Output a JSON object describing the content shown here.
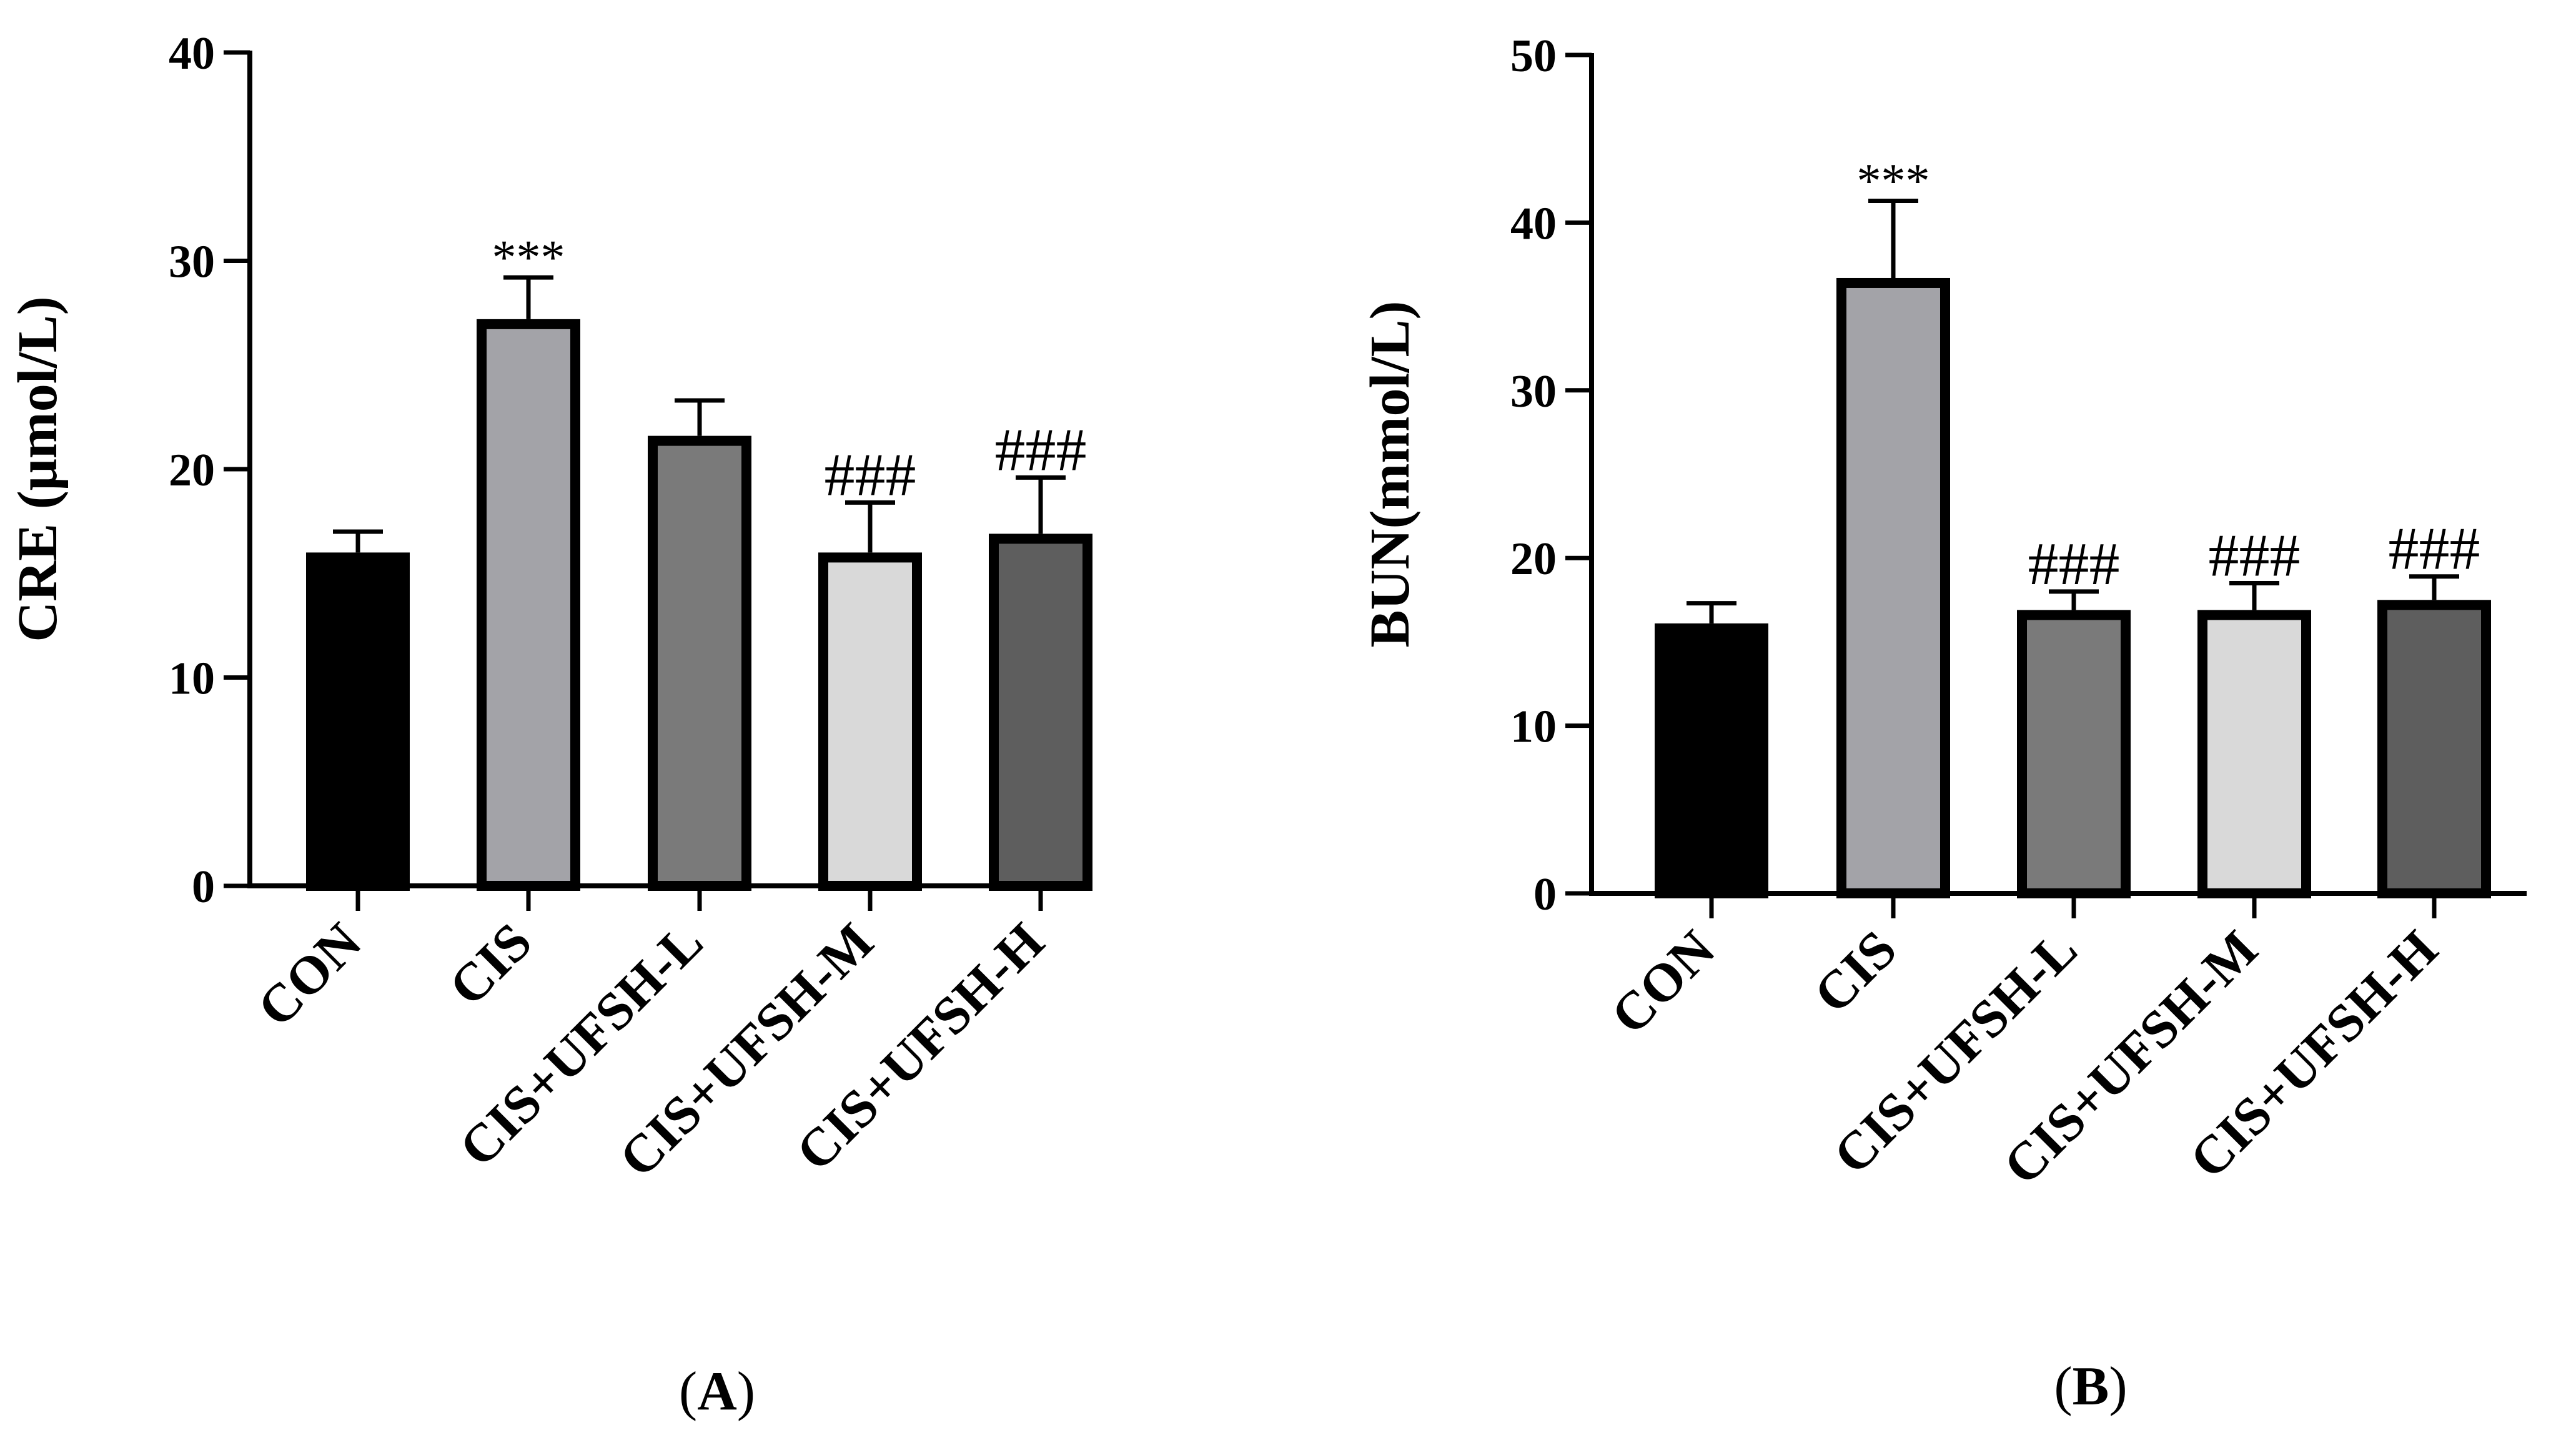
{
  "chart_data": [
    {
      "panel": "A",
      "panel_label": {
        "open": "(",
        "letter": "A",
        "close": ")"
      },
      "type": "bar",
      "ylabel": "CRE (μmol/L)",
      "xlabel": "",
      "ylim": [
        0,
        40
      ],
      "yticks": [
        0,
        10,
        20,
        30,
        40
      ],
      "ytick_labels": [
        "0",
        "10",
        "20",
        "30",
        "40"
      ],
      "categories": [
        "CON",
        "CIS",
        "CIS+UFSH-L",
        "CIS+UFSH-M",
        "CIS+UFSH-H"
      ],
      "values": [
        16.0,
        27.2,
        21.6,
        16.0,
        16.9
      ],
      "errors": [
        1.0,
        2.0,
        1.7,
        2.4,
        2.7
      ],
      "colors": [
        "#000000",
        "#a3a3a8",
        "#7a7a7a",
        "#d9d9d9",
        "#5e5e5e"
      ],
      "annotations": [
        "",
        "***",
        "",
        "###",
        "###"
      ]
    },
    {
      "panel": "B",
      "panel_label": {
        "open": "(",
        "letter": "B",
        "close": ")"
      },
      "type": "bar",
      "ylabel": "BUN(mmol/L)",
      "xlabel": "",
      "ylim": [
        0,
        50
      ],
      "yticks": [
        0,
        10,
        20,
        30,
        40,
        50
      ],
      "ytick_labels": [
        "0",
        "10",
        "20",
        "30",
        "40",
        "50"
      ],
      "categories": [
        "CON",
        "CIS",
        "CIS+UFSH-L",
        "CIS+UFSH-M",
        "CIS+UFSH-H"
      ],
      "values": [
        16.1,
        36.7,
        16.9,
        16.9,
        17.5
      ],
      "errors": [
        1.2,
        4.6,
        1.1,
        1.6,
        1.4
      ],
      "colors": [
        "#000000",
        "#a3a3a8",
        "#7a7a7a",
        "#d9d9d9",
        "#5e5e5e"
      ],
      "annotations": [
        "",
        "***",
        "###",
        "###",
        "###"
      ]
    }
  ]
}
